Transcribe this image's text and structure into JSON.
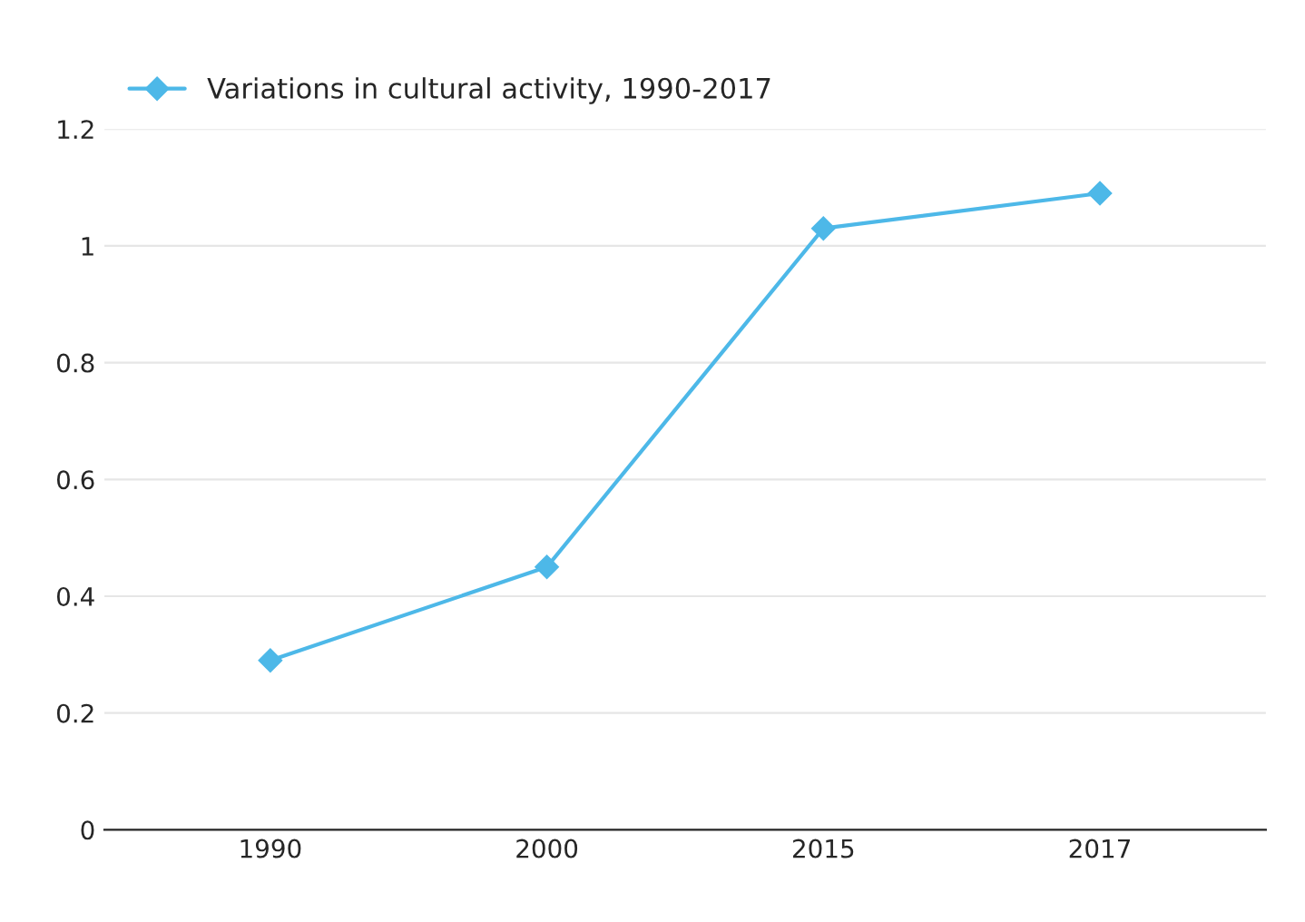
{
  "chart_data": {
    "type": "line",
    "categories": [
      "1990",
      "2000",
      "2015",
      "2017"
    ],
    "series": [
      {
        "name": "Variations in cultural activity, 1990-2017",
        "color": "#4db8e8",
        "values": [
          0.29,
          0.45,
          1.03,
          1.09
        ]
      }
    ],
    "ylim": [
      0,
      1.2
    ],
    "yticks": [
      0,
      0.2,
      0.4,
      0.6,
      0.8,
      1,
      1.2
    ],
    "grid": "y",
    "legend": "top left",
    "marker": "diamond",
    "line_style": "solid"
  }
}
